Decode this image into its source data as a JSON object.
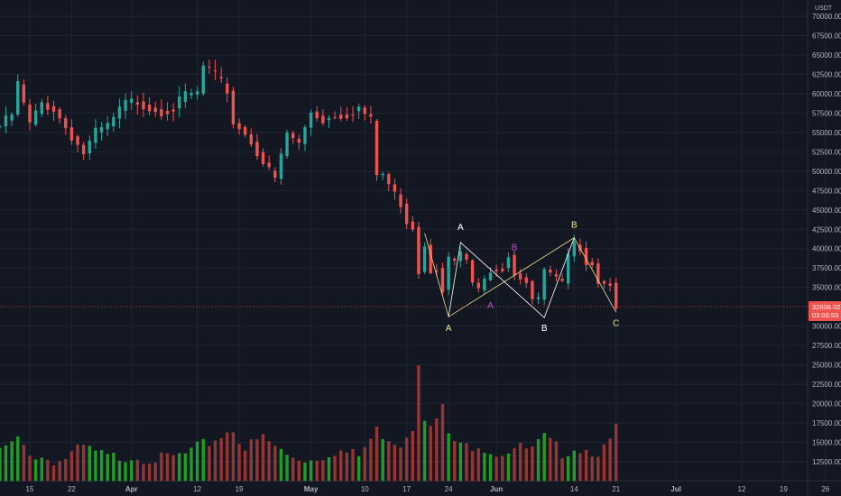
{
  "chart_data": {
    "type": "candlestick",
    "currency": "USDT",
    "ylim": [
      10000,
      72000
    ],
    "grid": true,
    "colors": {
      "background": "#131722",
      "grid": "#1f2433",
      "up": "#26a69a",
      "down": "#ef5350",
      "price_tag": "#ef5350",
      "line": "#f0e68c",
      "accent_white": "#ffffff",
      "accent_purple": "#b84fd1"
    },
    "y_ticks": [
      {
        "value": 70000,
        "label": "70000.00"
      },
      {
        "value": 67500,
        "label": "67500.00"
      },
      {
        "value": 65000,
        "label": "65000.00"
      },
      {
        "value": 62500,
        "label": "62500.00"
      },
      {
        "value": 60000,
        "label": "60000.00"
      },
      {
        "value": 57500,
        "label": "57500.00"
      },
      {
        "value": 55000,
        "label": "55000.00"
      },
      {
        "value": 52500,
        "label": "52500.00"
      },
      {
        "value": 50000,
        "label": "50000.00"
      },
      {
        "value": 47500,
        "label": "47500.00"
      },
      {
        "value": 45000,
        "label": "45000.00"
      },
      {
        "value": 42500,
        "label": "42500.00"
      },
      {
        "value": 40000,
        "label": "40000.00"
      },
      {
        "value": 37500,
        "label": "37500.00"
      },
      {
        "value": 35000,
        "label": "35000.00"
      },
      {
        "value": 30000,
        "label": "30000.00"
      },
      {
        "value": 27500,
        "label": "27500.00"
      },
      {
        "value": 25000,
        "label": "25000.00"
      },
      {
        "value": 22500,
        "label": "22500.00"
      },
      {
        "value": 20000,
        "label": "20000.00"
      },
      {
        "value": 17500,
        "label": "17500.00"
      },
      {
        "value": 15000,
        "label": "15000.00"
      },
      {
        "value": 12500,
        "label": "12500.00"
      }
    ],
    "x_ticks": [
      {
        "date": "2021-03-15",
        "label": "15",
        "bold": false
      },
      {
        "date": "2021-03-22",
        "label": "22",
        "bold": false
      },
      {
        "date": "2021-04-01",
        "label": "Apr",
        "bold": true
      },
      {
        "date": "2021-04-12",
        "label": "12",
        "bold": false
      },
      {
        "date": "2021-04-19",
        "label": "19",
        "bold": false
      },
      {
        "date": "2021-05-01",
        "label": "May",
        "bold": true
      },
      {
        "date": "2021-05-10",
        "label": "10",
        "bold": false
      },
      {
        "date": "2021-05-17",
        "label": "17",
        "bold": false
      },
      {
        "date": "2021-05-24",
        "label": "24",
        "bold": false
      },
      {
        "date": "2021-06-01",
        "label": "Jun",
        "bold": true
      },
      {
        "date": "2021-06-14",
        "label": "14",
        "bold": false
      },
      {
        "date": "2021-06-21",
        "label": "21",
        "bold": false
      },
      {
        "date": "2021-07-01",
        "label": "Jul",
        "bold": true
      },
      {
        "date": "2021-07-12",
        "label": "12",
        "bold": false
      },
      {
        "date": "2021-07-19",
        "label": "19",
        "bold": false
      },
      {
        "date": "2021-07-26",
        "label": "26",
        "bold": false
      }
    ],
    "price_close_points": [
      [
        "2021-03-10",
        55800
      ],
      [
        "2021-03-12",
        57300
      ],
      [
        "2021-03-13",
        61200
      ],
      [
        "2021-03-15",
        56000
      ],
      [
        "2021-03-17",
        58800
      ],
      [
        "2021-03-19",
        58000
      ],
      [
        "2021-03-22",
        54500
      ],
      [
        "2021-03-24",
        52300
      ],
      [
        "2021-03-26",
        55000
      ],
      [
        "2021-03-28",
        55800
      ],
      [
        "2021-03-31",
        58800
      ],
      [
        "2021-04-02",
        59000
      ],
      [
        "2021-04-04",
        58200
      ],
      [
        "2021-04-06",
        57800
      ],
      [
        "2021-04-08",
        58100
      ],
      [
        "2021-04-10",
        59800
      ],
      [
        "2021-04-12",
        60000
      ],
      [
        "2021-04-13",
        63500
      ],
      [
        "2021-04-14",
        63000
      ],
      [
        "2021-04-16",
        61300
      ],
      [
        "2021-04-17",
        60400
      ],
      [
        "2021-04-18",
        56200
      ],
      [
        "2021-04-19",
        55700
      ],
      [
        "2021-04-21",
        53800
      ],
      [
        "2021-04-23",
        51100
      ],
      [
        "2021-04-25",
        49000
      ],
      [
        "2021-04-27",
        54900
      ],
      [
        "2021-04-29",
        53500
      ],
      [
        "2021-05-01",
        57700
      ],
      [
        "2021-05-03",
        56600
      ],
      [
        "2021-05-05",
        57300
      ],
      [
        "2021-05-07",
        57300
      ],
      [
        "2021-05-09",
        58200
      ],
      [
        "2021-05-11",
        56500
      ],
      [
        "2021-05-12",
        49500
      ],
      [
        "2021-05-13",
        49600
      ],
      [
        "2021-05-15",
        47000
      ],
      [
        "2021-05-16",
        45800
      ],
      [
        "2021-05-17",
        43500
      ],
      [
        "2021-05-18",
        42800
      ],
      [
        "2021-05-19",
        37000
      ],
      [
        "2021-05-20",
        40500
      ],
      [
        "2021-05-21",
        37200
      ],
      [
        "2021-05-22",
        37500
      ],
      [
        "2021-05-23",
        34700
      ],
      [
        "2021-05-24",
        38700
      ],
      [
        "2021-05-25",
        38400
      ],
      [
        "2021-05-26",
        39300
      ],
      [
        "2021-05-27",
        38500
      ],
      [
        "2021-05-28",
        35600
      ],
      [
        "2021-05-29",
        34600
      ],
      [
        "2021-05-31",
        37300
      ],
      [
        "2021-06-02",
        37500
      ],
      [
        "2021-06-03",
        39200
      ],
      [
        "2021-06-04",
        36800
      ],
      [
        "2021-06-06",
        35800
      ],
      [
        "2021-06-07",
        33500
      ],
      [
        "2021-06-08",
        33400
      ],
      [
        "2021-06-09",
        37300
      ],
      [
        "2021-06-10",
        36700
      ],
      [
        "2021-06-12",
        35500
      ],
      [
        "2021-06-13",
        39000
      ],
      [
        "2021-06-14",
        40500
      ],
      [
        "2021-06-15",
        40100
      ],
      [
        "2021-06-16",
        38300
      ],
      [
        "2021-06-17",
        38100
      ],
      [
        "2021-06-18",
        35800
      ],
      [
        "2021-06-19",
        35500
      ],
      [
        "2021-06-20",
        35600
      ],
      [
        "2021-06-21",
        32600
      ]
    ],
    "volume_points": [
      [
        "2021-03-10",
        13800
      ],
      [
        "2021-03-13",
        15200
      ],
      [
        "2021-03-16",
        13200
      ],
      [
        "2021-03-20",
        12600
      ],
      [
        "2021-03-24",
        14300
      ],
      [
        "2021-03-28",
        13000
      ],
      [
        "2021-04-01",
        13300
      ],
      [
        "2021-04-06",
        12800
      ],
      [
        "2021-04-10",
        13400
      ],
      [
        "2021-04-14",
        15000
      ],
      [
        "2021-04-18",
        16800
      ],
      [
        "2021-04-20",
        14200
      ],
      [
        "2021-04-23",
        15600
      ],
      [
        "2021-04-27",
        13300
      ],
      [
        "2021-05-01",
        12800
      ],
      [
        "2021-05-05",
        14000
      ],
      [
        "2021-05-09",
        13200
      ],
      [
        "2021-05-12",
        16500
      ],
      [
        "2021-05-16",
        14900
      ],
      [
        "2021-05-18",
        17200
      ],
      [
        "2021-05-19",
        25800
      ],
      [
        "2021-05-20",
        18500
      ],
      [
        "2021-05-21",
        16600
      ],
      [
        "2021-05-23",
        19300
      ],
      [
        "2021-05-24",
        16000
      ],
      [
        "2021-05-26",
        14300
      ],
      [
        "2021-05-29",
        14900
      ],
      [
        "2021-06-01",
        13600
      ],
      [
        "2021-06-04",
        14300
      ],
      [
        "2021-06-07",
        14000
      ],
      [
        "2021-06-09",
        15500
      ],
      [
        "2021-06-12",
        13700
      ],
      [
        "2021-06-14",
        14400
      ],
      [
        "2021-06-16",
        14100
      ],
      [
        "2021-06-18",
        13900
      ],
      [
        "2021-06-20",
        14700
      ],
      [
        "2021-06-21",
        17100
      ]
    ],
    "pattern_lines": [
      {
        "name": "yellow",
        "color": "#f0e68c",
        "points": [
          [
            "2021-05-20",
            42000
          ],
          [
            "2021-05-24",
            31200
          ],
          [
            "2021-06-14",
            41400
          ],
          [
            "2021-06-21",
            31800
          ]
        ]
      },
      {
        "name": "white",
        "color": "#ffffff",
        "points": [
          [
            "2021-05-24",
            31200
          ],
          [
            "2021-05-26",
            40800
          ],
          [
            "2021-06-09",
            31100
          ],
          [
            "2021-06-14",
            41400
          ]
        ]
      }
    ],
    "annotations": [
      {
        "text": "A",
        "date": "2021-05-24",
        "value": 29400,
        "color": "#f0e68c"
      },
      {
        "text": "A",
        "date": "2021-05-26",
        "value": 42400,
        "color": "#ffffff"
      },
      {
        "text": "A",
        "date": "2021-05-31",
        "value": 32300,
        "color": "#b84fd1"
      },
      {
        "text": "B",
        "date": "2021-06-04",
        "value": 39800,
        "color": "#b84fd1"
      },
      {
        "text": "B",
        "date": "2021-06-09",
        "value": 29400,
        "color": "#ffffff"
      },
      {
        "text": "B",
        "date": "2021-06-14",
        "value": 42700,
        "color": "#f0e68c"
      },
      {
        "text": "C",
        "date": "2021-06-21",
        "value": 30000,
        "color": "#f0e68c"
      }
    ],
    "current_price": {
      "value": 32608.02,
      "label": "32608.02",
      "countdown": "03:06:53"
    }
  }
}
